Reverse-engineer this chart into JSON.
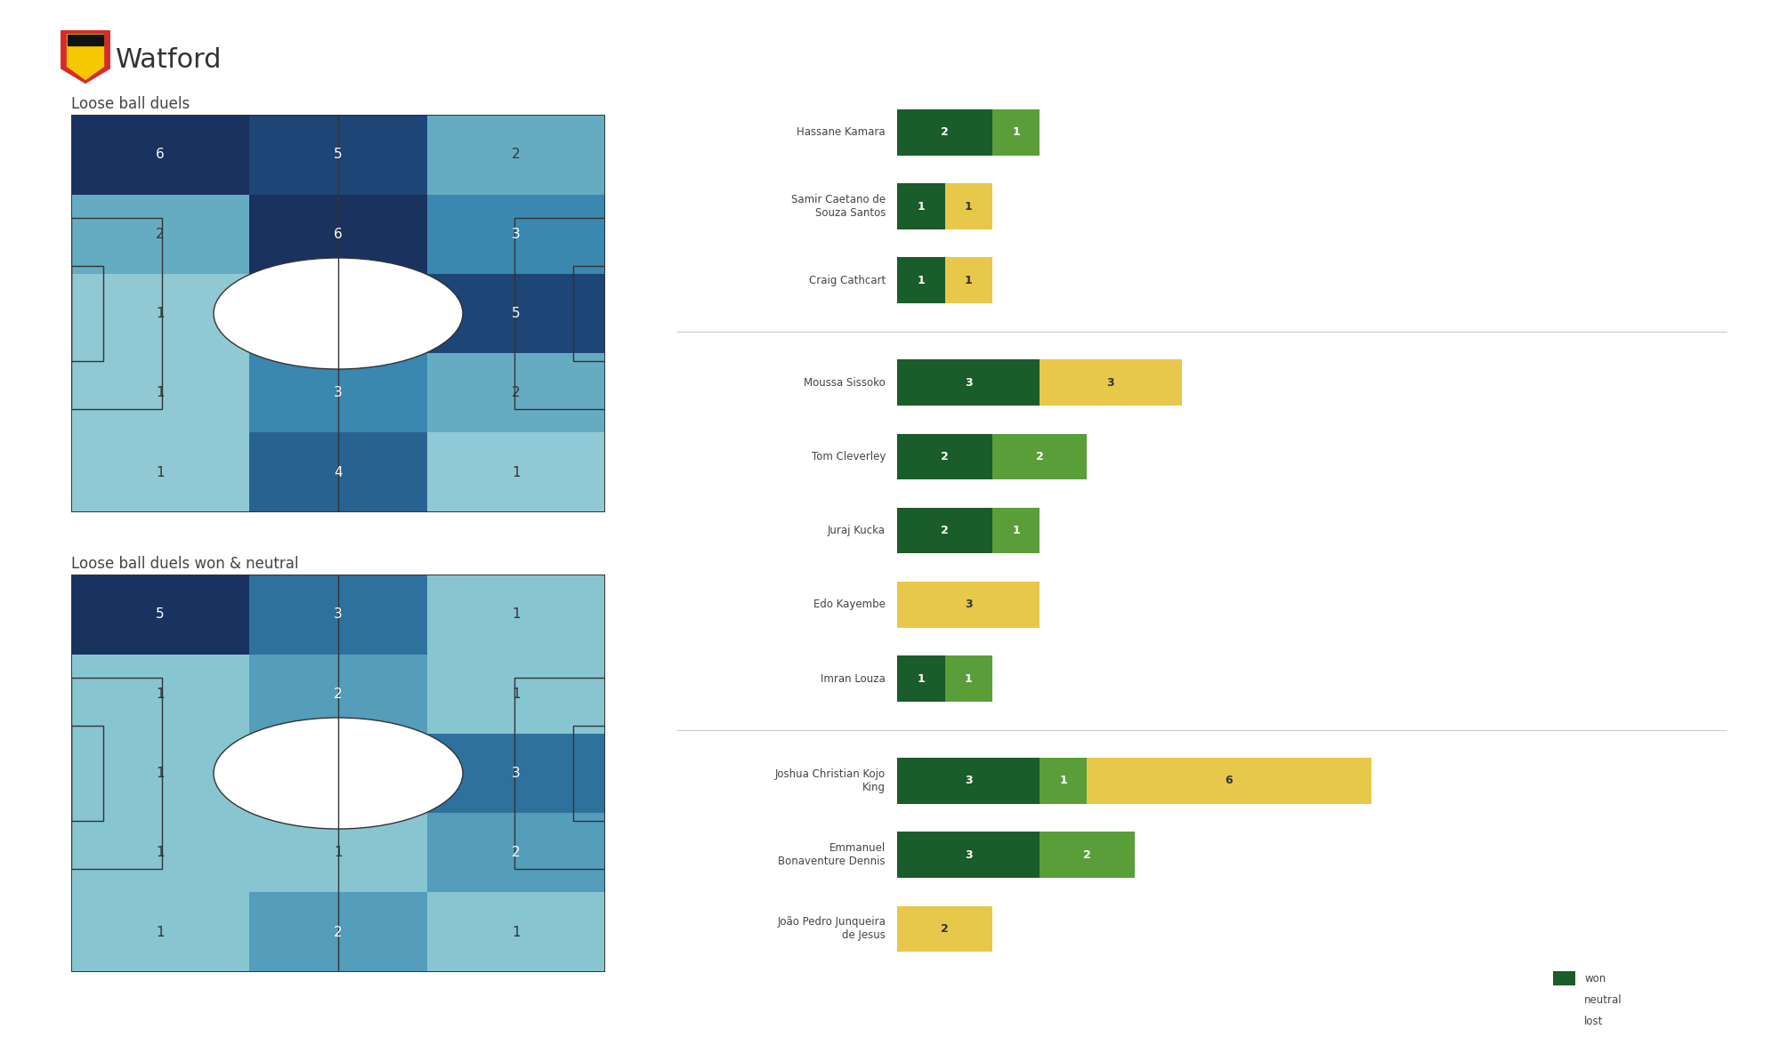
{
  "title": "Watford",
  "heatmap1_title": "Loose ball duels",
  "heatmap2_title": "Loose ball duels won & neutral",
  "bg_color": "#ffffff",
  "heatmap1_data": [
    [
      6,
      5,
      2
    ],
    [
      2,
      6,
      3
    ],
    [
      1,
      0,
      5
    ],
    [
      1,
      3,
      2
    ],
    [
      1,
      4,
      1
    ]
  ],
  "heatmap2_data": [
    [
      5,
      3,
      1
    ],
    [
      1,
      2,
      1
    ],
    [
      1,
      0,
      3
    ],
    [
      1,
      1,
      2
    ],
    [
      1,
      2,
      1
    ]
  ],
  "players": [
    {
      "name": "Hassane Kamara",
      "won": 2,
      "neutral": 1,
      "lost": 0,
      "group": 1
    },
    {
      "name": "Samir Caetano de\nSouza Santos",
      "won": 1,
      "neutral": 0,
      "lost": 1,
      "group": 1
    },
    {
      "name": "Craig Cathcart",
      "won": 1,
      "neutral": 0,
      "lost": 1,
      "group": 1
    },
    {
      "name": "Moussa Sissoko",
      "won": 3,
      "neutral": 0,
      "lost": 3,
      "group": 2
    },
    {
      "name": "Tom Cleverley",
      "won": 2,
      "neutral": 2,
      "lost": 0,
      "group": 2
    },
    {
      "name": "Juraj Kucka",
      "won": 2,
      "neutral": 1,
      "lost": 0,
      "group": 2
    },
    {
      "name": "Edo Kayembe",
      "won": 0,
      "neutral": 0,
      "lost": 3,
      "group": 2
    },
    {
      "name": "Imran Louza",
      "won": 1,
      "neutral": 1,
      "lost": 0,
      "group": 2
    },
    {
      "name": "Joshua Christian Kojo\nKing",
      "won": 3,
      "neutral": 1,
      "lost": 6,
      "group": 3
    },
    {
      "name": "Emmanuel\nBonaventure Dennis",
      "won": 3,
      "neutral": 2,
      "lost": 0,
      "group": 3
    },
    {
      "name": "João Pedro Junqueira\nde Jesus",
      "won": 0,
      "neutral": 0,
      "lost": 2,
      "group": 3
    }
  ],
  "color_won": "#1a5c2a",
  "color_neutral": "#5a9e3a",
  "color_lost": "#e8c84a",
  "heatmap_colors": [
    "#b8dde4",
    "#7bbfcc",
    "#3a87b0",
    "#1e4f80",
    "#1a3260"
  ]
}
